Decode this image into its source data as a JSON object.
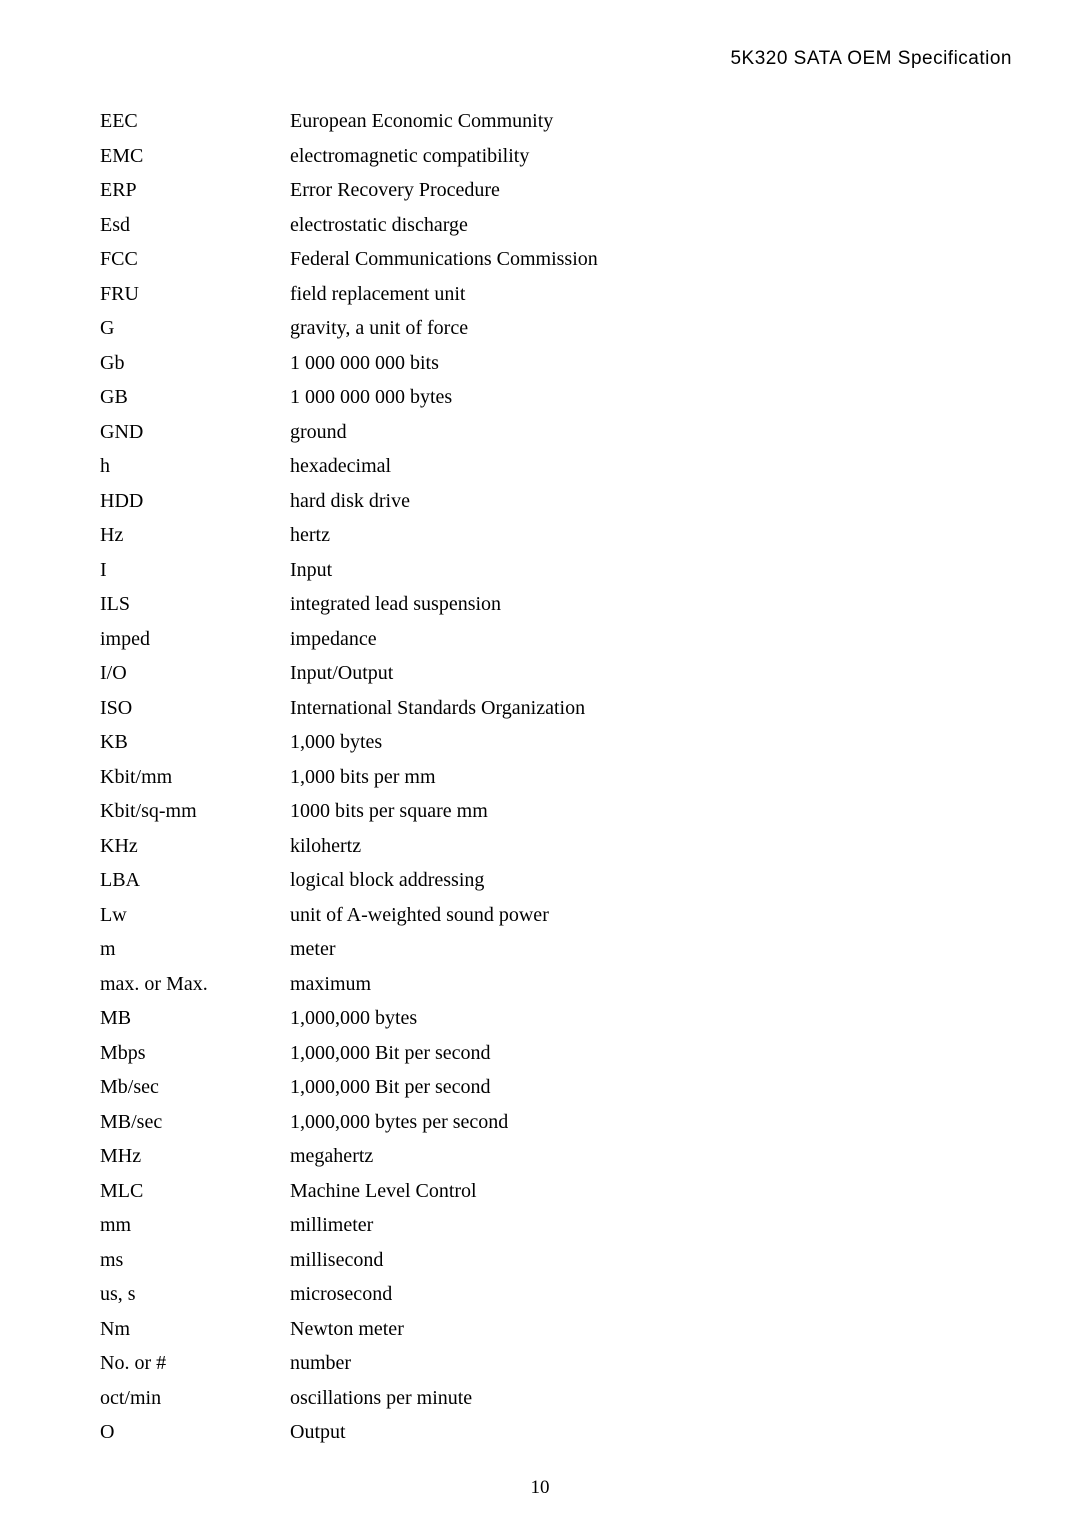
{
  "header": "5K320 SATA OEM Specification",
  "page_number": "10",
  "glossary": [
    {
      "term": "EEC",
      "def": "European Economic Community"
    },
    {
      "term": "EMC",
      "def": "electromagnetic compatibility"
    },
    {
      "term": "ERP",
      "def": "Error Recovery Procedure"
    },
    {
      "term": "Esd",
      "def": "electrostatic discharge"
    },
    {
      "term": "FCC",
      "def": "Federal Communications Commission"
    },
    {
      "term": "FRU",
      "def": "field replacement unit"
    },
    {
      "term": "G",
      "def": "gravity, a unit of force"
    },
    {
      "term": "Gb",
      "def": "1 000 000 000 bits"
    },
    {
      "term": "GB",
      "def": "1 000 000 000 bytes"
    },
    {
      "term": "GND",
      "def": "ground"
    },
    {
      "term": "h",
      "def": "hexadecimal"
    },
    {
      "term": "HDD",
      "def": "hard disk drive"
    },
    {
      "term": "Hz",
      "def": "hertz"
    },
    {
      "term": "I",
      "def": "Input"
    },
    {
      "term": "ILS",
      "def": "integrated lead suspension"
    },
    {
      "term": "imped",
      "def": "impedance"
    },
    {
      "term": "I/O",
      "def": "Input/Output"
    },
    {
      "term": "ISO",
      "def": "International Standards Organization"
    },
    {
      "term": "KB",
      "def": "1,000 bytes"
    },
    {
      "term": "Kbit/mm",
      "def": "1,000 bits per mm"
    },
    {
      "term": "Kbit/sq-mm",
      "def": "1000 bits per square mm"
    },
    {
      "term": "KHz",
      "def": "kilohertz"
    },
    {
      "term": "LBA",
      "def": "logical block addressing"
    },
    {
      "term": "Lw",
      "def": "unit of A-weighted sound power"
    },
    {
      "term": "m",
      "def": "meter"
    },
    {
      "term": "max. or Max.",
      "def": "maximum"
    },
    {
      "term": "MB",
      "def": "1,000,000 bytes"
    },
    {
      "term": "Mbps",
      "def": "1,000,000 Bit per second"
    },
    {
      "term": "Mb/sec",
      "def": "1,000,000 Bit per second"
    },
    {
      "term": "MB/sec",
      "def": "1,000,000 bytes per second"
    },
    {
      "term": "MHz",
      "def": "megahertz"
    },
    {
      "term": "MLC",
      "def": "Machine Level Control"
    },
    {
      "term": "mm",
      "def": "millimeter"
    },
    {
      "term": "ms",
      "def": "millisecond"
    },
    {
      "term": "us,   s",
      "def": "microsecond"
    },
    {
      "term": "Nm",
      "def": "Newton meter"
    },
    {
      "term": "No. or #",
      "def": "number"
    },
    {
      "term": "oct/min",
      "def": "oscillations per minute"
    },
    {
      "term": "O",
      "def": "Output"
    }
  ]
}
